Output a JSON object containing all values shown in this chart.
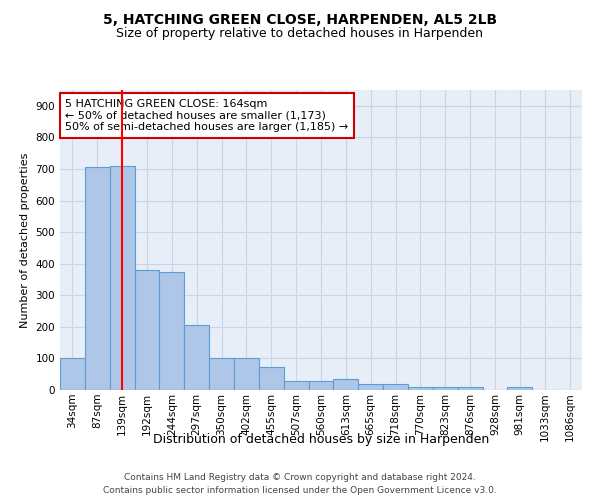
{
  "title": "5, HATCHING GREEN CLOSE, HARPENDEN, AL5 2LB",
  "subtitle": "Size of property relative to detached houses in Harpenden",
  "xlabel": "Distribution of detached houses by size in Harpenden",
  "ylabel": "Number of detached properties",
  "bar_color": "#aec6e8",
  "bar_edge_color": "#5a9fd4",
  "bar_edge_width": 0.8,
  "background_color": "#ffffff",
  "plot_bg_color": "#e8eef8",
  "grid_color": "#c8d4e8",
  "categories": [
    "34sqm",
    "87sqm",
    "139sqm",
    "192sqm",
    "244sqm",
    "297sqm",
    "350sqm",
    "402sqm",
    "455sqm",
    "507sqm",
    "560sqm",
    "613sqm",
    "665sqm",
    "718sqm",
    "770sqm",
    "823sqm",
    "876sqm",
    "928sqm",
    "981sqm",
    "1033sqm",
    "1086sqm"
  ],
  "values": [
    100,
    705,
    710,
    380,
    375,
    205,
    100,
    100,
    73,
    30,
    30,
    35,
    20,
    20,
    10,
    10,
    10,
    0,
    10,
    0,
    0
  ],
  "ylim": [
    0,
    950
  ],
  "yticks": [
    0,
    100,
    200,
    300,
    400,
    500,
    600,
    700,
    800,
    900
  ],
  "red_line_x": 2,
  "annotation_text": "5 HATCHING GREEN CLOSE: 164sqm\n← 50% of detached houses are smaller (1,173)\n50% of semi-detached houses are larger (1,185) →",
  "annotation_box_color": "#ffffff",
  "annotation_box_edge_color": "#cc0000",
  "footer_line1": "Contains HM Land Registry data © Crown copyright and database right 2024.",
  "footer_line2": "Contains public sector information licensed under the Open Government Licence v3.0.",
  "title_fontsize": 10,
  "subtitle_fontsize": 9,
  "ylabel_fontsize": 8,
  "xlabel_fontsize": 9,
  "tick_fontsize": 7.5,
  "annotation_fontsize": 8,
  "footer_fontsize": 6.5
}
